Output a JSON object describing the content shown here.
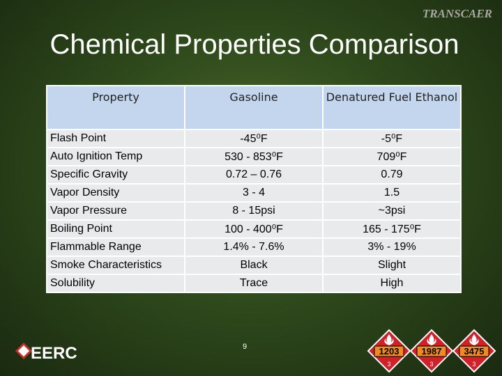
{
  "header": {
    "title": "Chemical Properties Comparison",
    "logo": "TRANSCAER"
  },
  "table": {
    "columns": [
      "Property",
      "Gasoline",
      "Denatured Fuel Ethanol"
    ],
    "rows": [
      [
        "Flash Point",
        "-45⁰F",
        "-5⁰F"
      ],
      [
        "Auto Ignition Temp",
        "530 - 853⁰F",
        "709⁰F"
      ],
      [
        "Specific Gravity",
        "0.72 – 0.76",
        "0.79"
      ],
      [
        "Vapor Density",
        "3 - 4",
        "1.5"
      ],
      [
        "Vapor Pressure",
        "8 - 15psi",
        "~3psi"
      ],
      [
        "Boiling Point",
        "100 - 400⁰F",
        "165 - 175⁰F"
      ],
      [
        "Flammable Range",
        "1.4% - 7.6%",
        "3% - 19%"
      ],
      [
        "Smoke Characteristics",
        "Black",
        "Slight"
      ],
      [
        "Solubility",
        "Trace",
        "High"
      ]
    ]
  },
  "footer": {
    "page_number": "9",
    "org_logo": "EERC",
    "placards": [
      {
        "number": "1203",
        "class": "3"
      },
      {
        "number": "1987",
        "class": "3"
      },
      {
        "number": "3475",
        "class": "3"
      }
    ]
  }
}
